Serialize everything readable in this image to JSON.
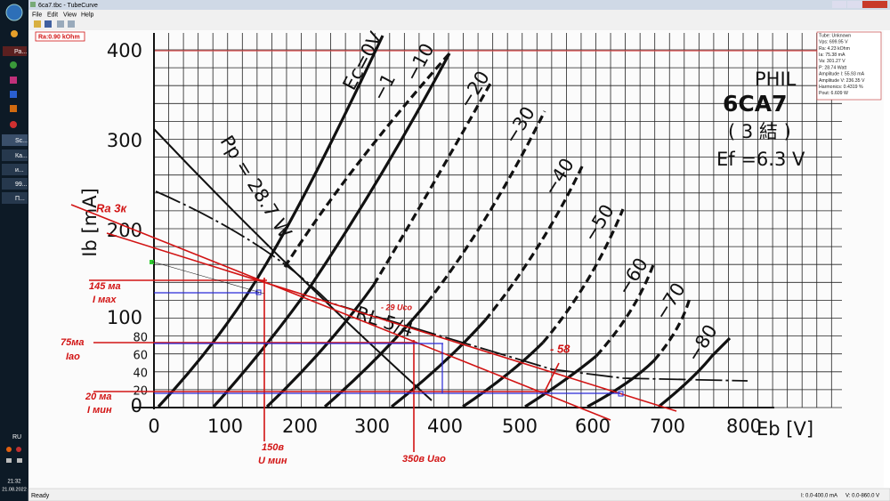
{
  "taskbar": {
    "items": [
      "Ра...",
      "Sc...",
      "Ка...",
      "и...",
      "99...",
      "П..."
    ],
    "language": "RU",
    "time": "21:32",
    "date": "21.08.2022"
  },
  "window": {
    "title": "6ca7.tbc - TubeCurve",
    "menu": [
      "File",
      "Edit",
      "View",
      "Help"
    ],
    "ra_indicator": "Ra:0.90 kOhm"
  },
  "plot": {
    "x_ticks": [
      "0",
      "100",
      "200",
      "300",
      "400",
      "500",
      "600",
      "700",
      "800"
    ],
    "y_ticks": [
      "400",
      "300",
      "200",
      "100",
      "0"
    ],
    "y_ticks_small": [
      "80",
      "60",
      "40",
      "20"
    ],
    "x_label": "Eb  [V]",
    "y_label": "Ib  [mA]",
    "curve_labels": [
      "Ec=0V",
      "−1",
      "−10",
      "−20",
      "−30",
      "−40",
      "−50",
      "−60",
      "−70",
      "−80"
    ],
    "load_label": "RL 5/4",
    "dissipation_label": "Pp = 28.7 W",
    "header": [
      "PHIL",
      "6CA7",
      "( 3 結 )",
      "Ef =6.3 V"
    ]
  },
  "annotations": [
    "Ra 3к",
    "145 ма",
    "I мах",
    "75ма",
    "Iao",
    "20 ма",
    "I мин",
    "150в",
    "U мин",
    "350в Uao",
    "- 29 Uco",
    "- 58"
  ],
  "info_box": [
    "Tube: Unknown",
    "Vps: 699.95 V",
    "Ra: 4.23 kOhm",
    "Ia: 75.38 mA",
    "Va: 301.27 V",
    "P: 28.74 Watt",
    "Amplitude I: 55.93 mA",
    "Amplitude V: 236.35 V",
    "Harmonics: 0.4319 %",
    "Pout: 6.609 W"
  ],
  "status_bar": {
    "text": "Ready",
    "current_range": "I: 0.0-400.0 mA",
    "voltage_range": "V: 0.0-860.0 V"
  }
}
